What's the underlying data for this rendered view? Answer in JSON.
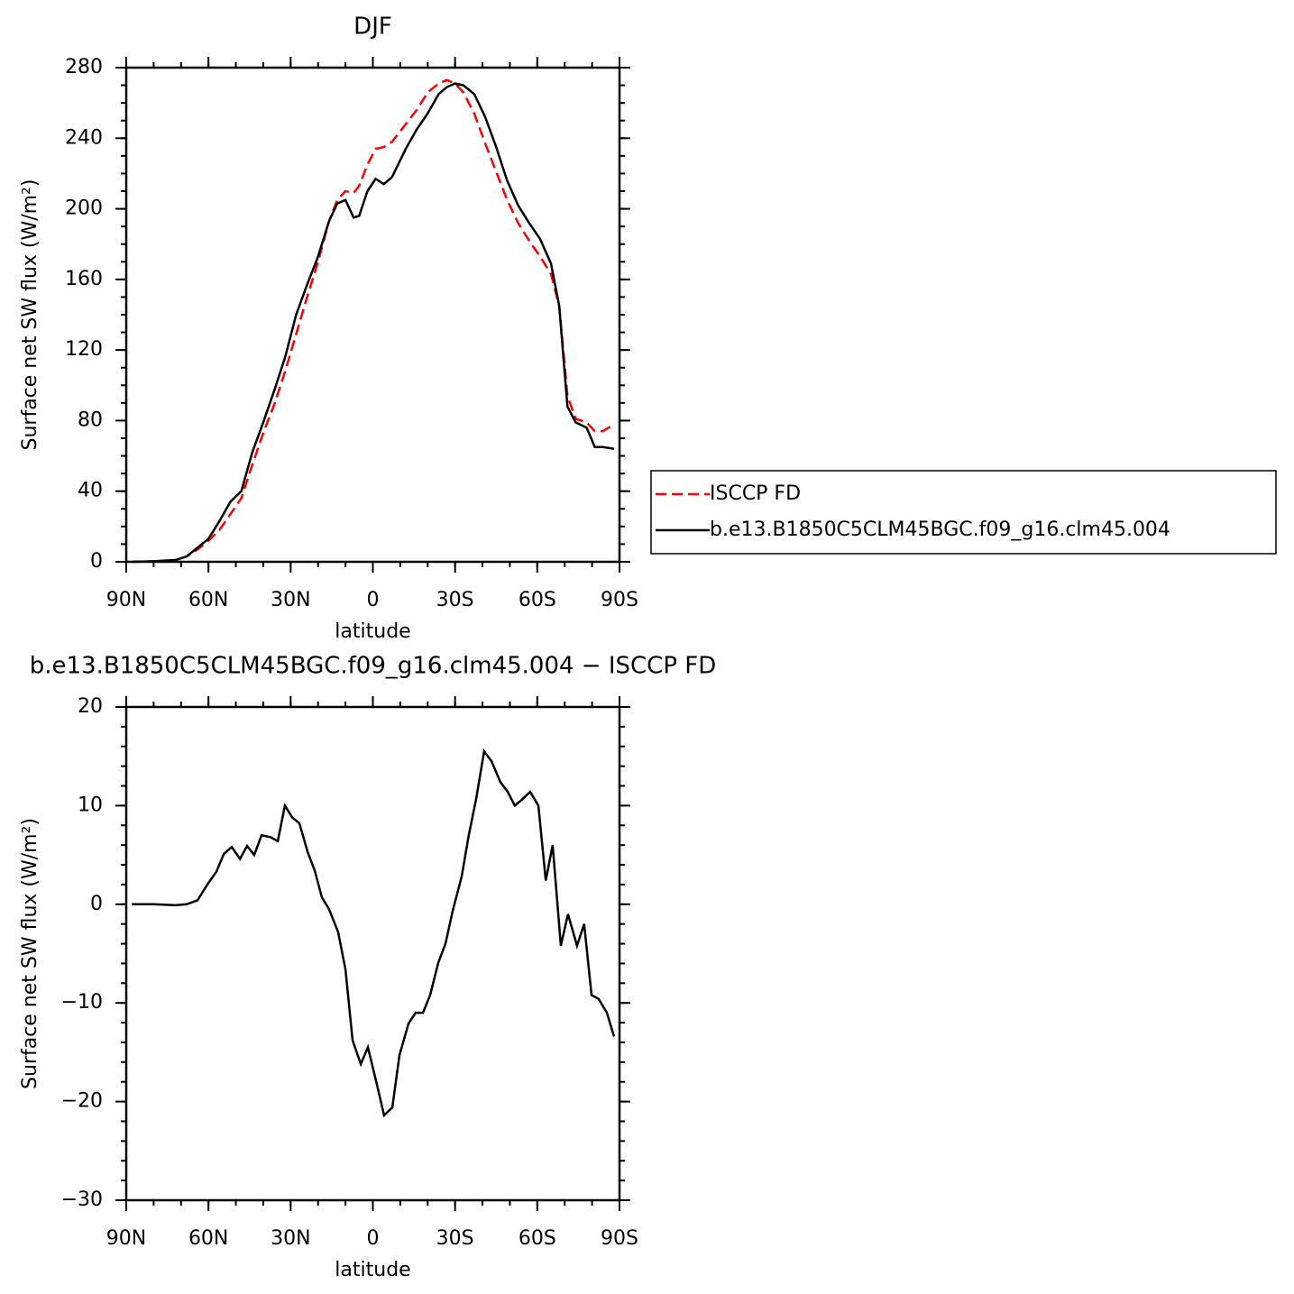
{
  "chart_data": [
    {
      "type": "line",
      "title": "DJF",
      "ylabel": "Surface net SW flux (W/m²)",
      "xlabel": "latitude",
      "x": [
        88,
        80,
        72,
        68,
        64,
        60,
        56,
        52,
        48,
        44,
        40,
        36,
        32,
        28,
        24,
        20,
        16,
        13,
        10,
        7,
        5,
        2,
        -1,
        -4,
        -7,
        -12,
        -16,
        -20,
        -24,
        -27,
        -30,
        -33,
        -37,
        -41,
        -45,
        -49,
        -53,
        -57,
        -61,
        -65,
        -68,
        -71,
        -74,
        -78,
        -81,
        -84,
        -88
      ],
      "series": [
        {
          "name": "ISCCP FD",
          "color": "#ff0000",
          "dash": true,
          "values": [
            0,
            0.3,
            1,
            3,
            7,
            12,
            18,
            27,
            36,
            55,
            73,
            89,
            108,
            129,
            150,
            170,
            193,
            205,
            210,
            209,
            213,
            225,
            234,
            235,
            238,
            248,
            256,
            266,
            271,
            273,
            271,
            266,
            254,
            237,
            221,
            205,
            192,
            182,
            173,
            163,
            145,
            94,
            81,
            79,
            74,
            74,
            78
          ]
        },
        {
          "name": "b.e13.B1850C5CLM45BGC.f09_g16.clm45.004",
          "color": "#000000",
          "dash": false,
          "values": [
            0,
            0.3,
            1,
            3,
            8,
            13,
            23,
            34,
            40,
            62,
            79,
            97,
            116,
            140,
            157,
            173,
            193,
            203,
            205,
            195,
            196,
            210,
            217,
            214,
            218,
            234,
            245,
            254,
            265,
            269,
            271,
            270,
            265,
            252,
            235,
            216,
            202,
            192,
            183,
            169,
            145,
            88,
            79,
            76,
            65,
            65,
            64
          ]
        }
      ],
      "xlim": [
        90,
        -90
      ],
      "xticks": [
        {
          "value": 90,
          "label": "90N"
        },
        {
          "value": 60,
          "label": "60N"
        },
        {
          "value": 30,
          "label": "30N"
        },
        0,
        {
          "value": -30,
          "label": "30S"
        },
        {
          "value": -60,
          "label": "60S"
        },
        {
          "value": -90,
          "label": "90S"
        }
      ],
      "xminorticks": [
        90,
        80,
        70,
        60,
        50,
        40,
        30,
        20,
        10,
        0,
        -10,
        -20,
        -30,
        -40,
        -50,
        -60,
        -70,
        -80,
        -90
      ],
      "ylim": [
        0,
        280
      ],
      "yticks": [
        0,
        40,
        80,
        120,
        160,
        200,
        240,
        280
      ],
      "yminorticks": [
        0,
        10,
        20,
        30,
        40,
        50,
        60,
        70,
        80,
        90,
        100,
        110,
        120,
        130,
        140,
        150,
        160,
        170,
        180,
        190,
        200,
        210,
        220,
        230,
        240,
        250,
        260,
        270,
        280
      ],
      "legend": "outside right"
    },
    {
      "type": "line",
      "title": "b.e13.B1850C5CLM45BGC.f09_g16.clm45.004 − ISCCP FD",
      "ylabel": "Surface net SW flux (W/m²)",
      "xlabel": "latitude",
      "x": [
        88,
        80,
        72,
        68,
        64,
        60.4,
        57.1,
        54.4,
        51.5,
        48.5,
        45.9,
        43.3,
        40.6,
        37.3,
        34.7,
        32.1,
        29.4,
        26.8,
        23.8,
        21.2,
        18.6,
        16,
        12.7,
        10,
        7.4,
        4.4,
        1.8,
        -1.5,
        -4.1,
        -7.1,
        -9.7,
        -13,
        -15.6,
        -18.3,
        -20.9,
        -23.9,
        -26.5,
        -29.1,
        -32.4,
        -35,
        -37.7,
        -40.6,
        -43.3,
        -46.5,
        -49.2,
        -51.8,
        -54.4,
        -57.4,
        -60.4,
        -63.1,
        -65.6,
        -68.6,
        -71.2,
        -74.5,
        -77.1,
        -79.8,
        -82.4,
        -85.4,
        -88
      ],
      "series": [
        {
          "color": "#000000",
          "dash": false,
          "values": [
            0,
            0,
            -0.1,
            0,
            0.4,
            2,
            3.3,
            5.1,
            5.8,
            4.6,
            5.9,
            5,
            7,
            6.8,
            6.4,
            10,
            8.8,
            8.2,
            5.3,
            3.4,
            0.7,
            -0.5,
            -2.8,
            -6.6,
            -13.8,
            -16.2,
            -14.5,
            -18.3,
            -21.4,
            -20.6,
            -15.3,
            -12.1,
            -11,
            -11,
            -9.2,
            -5.9,
            -4,
            -0.7,
            2.8,
            7,
            10.7,
            15.5,
            14.5,
            12.4,
            11.4,
            10,
            10.6,
            11.4,
            10,
            2.4,
            6,
            -4.2,
            -1,
            -4.2,
            -2,
            -9.2,
            -9.6,
            -11,
            -13.4
          ]
        }
      ],
      "xlim": [
        90,
        -90
      ],
      "xticks": [
        {
          "value": 90,
          "label": "90N"
        },
        {
          "value": 60,
          "label": "60N"
        },
        {
          "value": 30,
          "label": "30N"
        },
        0,
        {
          "value": -30,
          "label": "30S"
        },
        {
          "value": -60,
          "label": "60S"
        },
        {
          "value": -90,
          "label": "90S"
        }
      ],
      "xminorticks": [
        90,
        80,
        70,
        60,
        50,
        40,
        30,
        20,
        10,
        0,
        -10,
        -20,
        -30,
        -40,
        -50,
        -60,
        -70,
        -80,
        -90
      ],
      "ylim": [
        -30,
        20
      ],
      "yticks": [
        {
          "value": -30,
          "label": "−30"
        },
        {
          "value": -20,
          "label": "−20"
        },
        {
          "value": -10,
          "label": "−10"
        },
        0,
        10,
        20
      ],
      "yminorticks": [
        -30,
        -28,
        -26,
        -24,
        -22,
        -20,
        -18,
        -16,
        -14,
        -12,
        -10,
        -8,
        -6,
        -4,
        -2,
        0,
        2,
        4,
        6,
        8,
        10,
        12,
        14,
        16,
        18,
        20
      ]
    }
  ]
}
